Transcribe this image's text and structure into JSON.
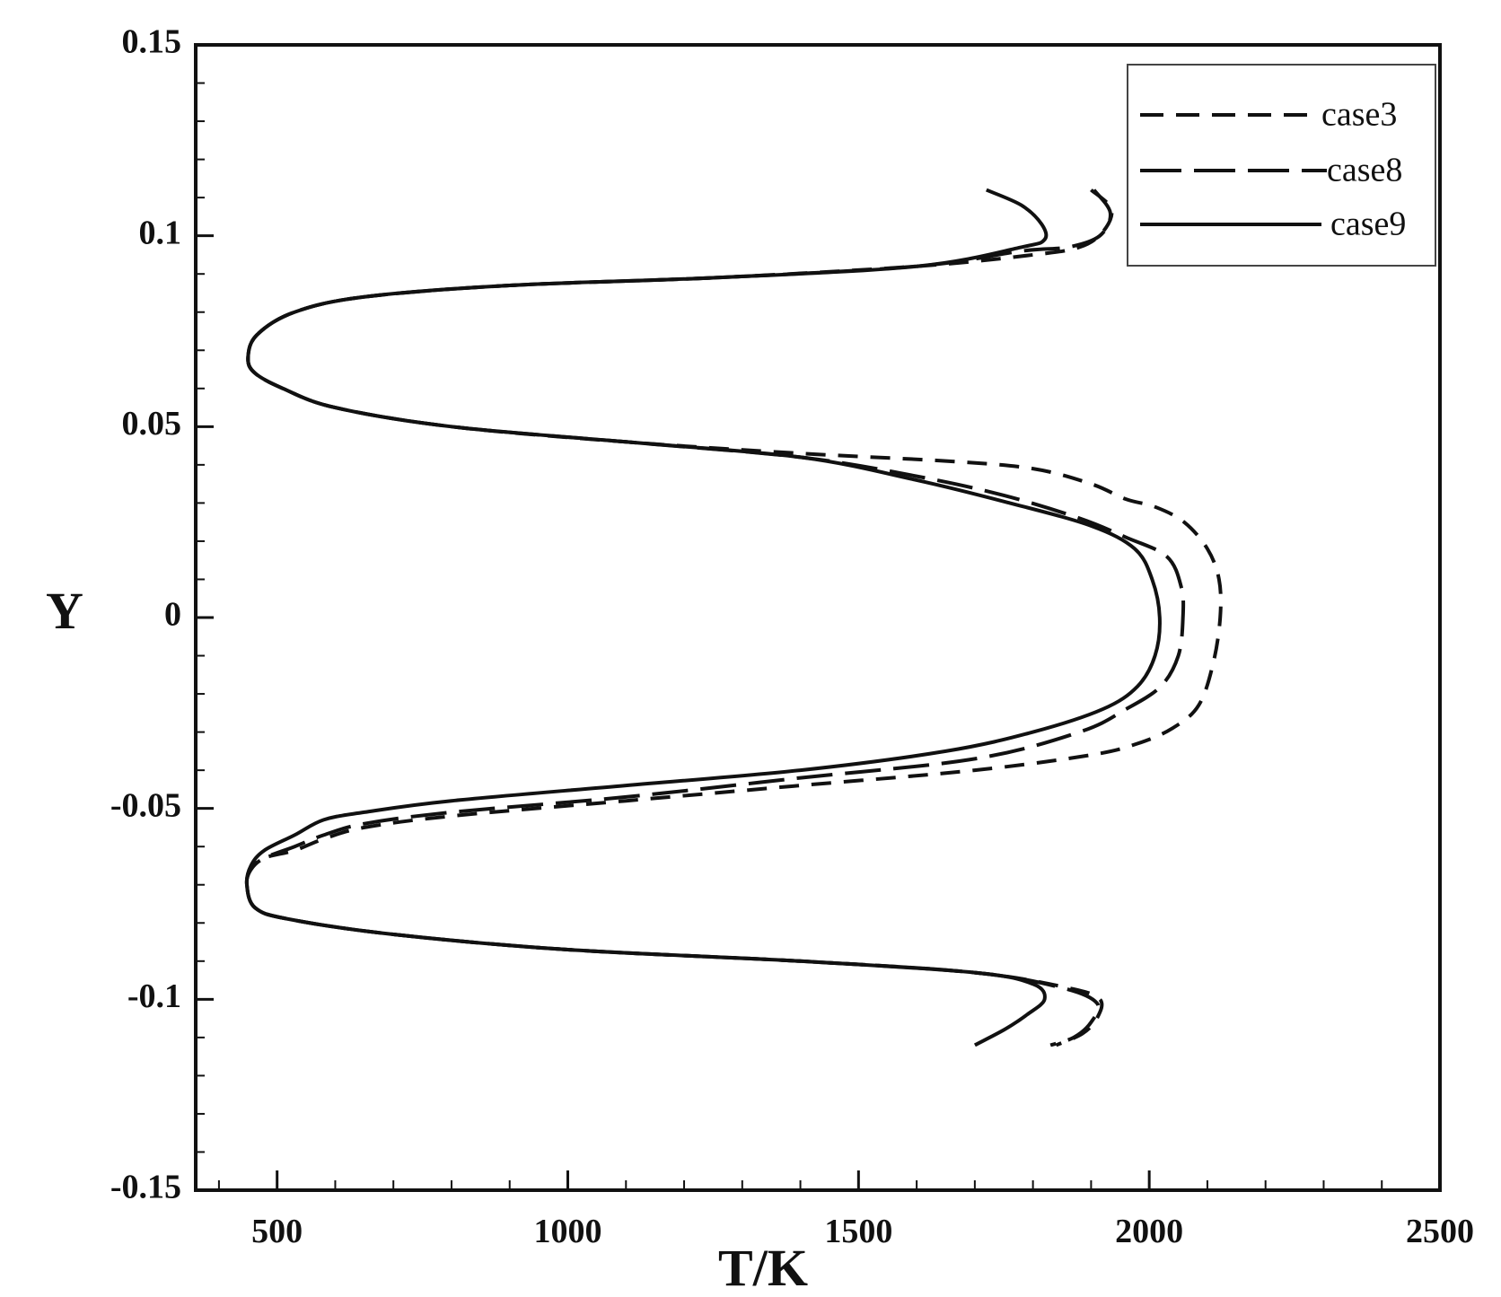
{
  "chart_data": {
    "type": "line",
    "title": "",
    "xlabel": "T/K",
    "ylabel": "Y",
    "xlim": [
      360,
      2500
    ],
    "ylim": [
      -0.15,
      0.15
    ],
    "x_ticks": [
      500,
      1000,
      1500,
      2000,
      2500
    ],
    "y_ticks": [
      -0.15,
      -0.1,
      -0.05,
      0,
      0.05,
      0.1,
      0.15
    ],
    "x_tick_labels": [
      "500",
      "1000",
      "1500",
      "2000",
      "2500"
    ],
    "y_tick_labels": [
      "-0.15",
      "-0.1",
      "-0.05",
      "0",
      "0.05",
      "0.1",
      "0.15"
    ],
    "grid": false,
    "legend_position": "top-right",
    "series": [
      {
        "name": "case3",
        "line_style": "dashed-short",
        "color": "#111111",
        "points": [
          [
            1900,
            0.112
          ],
          [
            1935,
            0.107
          ],
          [
            1920,
            0.101
          ],
          [
            1880,
            0.097
          ],
          [
            1800,
            0.095
          ],
          [
            1600,
            0.092
          ],
          [
            1250,
            0.089
          ],
          [
            900,
            0.087
          ],
          [
            650,
            0.084
          ],
          [
            530,
            0.08
          ],
          [
            465,
            0.074
          ],
          [
            450,
            0.068
          ],
          [
            462,
            0.064
          ],
          [
            510,
            0.06
          ],
          [
            600,
            0.055
          ],
          [
            800,
            0.05
          ],
          [
            1100,
            0.046
          ],
          [
            1400,
            0.043
          ],
          [
            1650,
            0.041
          ],
          [
            1800,
            0.039
          ],
          [
            1900,
            0.035
          ],
          [
            1960,
            0.031
          ],
          [
            2010,
            0.029
          ],
          [
            2060,
            0.025
          ],
          [
            2100,
            0.018
          ],
          [
            2120,
            0.01
          ],
          [
            2122,
            0.0
          ],
          [
            2110,
            -0.012
          ],
          [
            2085,
            -0.023
          ],
          [
            2040,
            -0.029
          ],
          [
            1980,
            -0.033
          ],
          [
            1900,
            -0.036
          ],
          [
            1700,
            -0.04
          ],
          [
            1400,
            -0.044
          ],
          [
            1100,
            -0.048
          ],
          [
            800,
            -0.052
          ],
          [
            650,
            -0.055
          ],
          [
            580,
            -0.058
          ],
          [
            530,
            -0.061
          ],
          [
            478,
            -0.063
          ],
          [
            455,
            -0.066
          ],
          [
            448,
            -0.07
          ],
          [
            462,
            -0.076
          ],
          [
            520,
            -0.079
          ],
          [
            700,
            -0.083
          ],
          [
            1000,
            -0.087
          ],
          [
            1400,
            -0.09
          ],
          [
            1700,
            -0.093
          ],
          [
            1860,
            -0.097
          ],
          [
            1915,
            -0.1
          ],
          [
            1910,
            -0.105
          ],
          [
            1885,
            -0.109
          ],
          [
            1840,
            -0.112
          ]
        ]
      },
      {
        "name": "case8",
        "line_style": "dashed-long",
        "color": "#111111",
        "points": [
          [
            1905,
            0.112
          ],
          [
            1933,
            0.106
          ],
          [
            1915,
            0.1
          ],
          [
            1860,
            0.097
          ],
          [
            1780,
            0.096
          ],
          [
            1600,
            0.092
          ],
          [
            1250,
            0.089
          ],
          [
            900,
            0.087
          ],
          [
            650,
            0.084
          ],
          [
            530,
            0.08
          ],
          [
            465,
            0.074
          ],
          [
            450,
            0.068
          ],
          [
            462,
            0.064
          ],
          [
            510,
            0.06
          ],
          [
            600,
            0.055
          ],
          [
            800,
            0.05
          ],
          [
            1100,
            0.046
          ],
          [
            1400,
            0.042
          ],
          [
            1600,
            0.037
          ],
          [
            1750,
            0.032
          ],
          [
            1880,
            0.026
          ],
          [
            1960,
            0.021
          ],
          [
            2030,
            0.016
          ],
          [
            2055,
            0.008
          ],
          [
            2058,
            0.0
          ],
          [
            2050,
            -0.01
          ],
          [
            2020,
            -0.018
          ],
          [
            1960,
            -0.024
          ],
          [
            1880,
            -0.03
          ],
          [
            1700,
            -0.037
          ],
          [
            1400,
            -0.042
          ],
          [
            1100,
            -0.047
          ],
          [
            800,
            -0.051
          ],
          [
            650,
            -0.054
          ],
          [
            580,
            -0.057
          ],
          [
            530,
            -0.06
          ],
          [
            478,
            -0.063
          ],
          [
            455,
            -0.066
          ],
          [
            448,
            -0.07
          ],
          [
            462,
            -0.076
          ],
          [
            520,
            -0.079
          ],
          [
            700,
            -0.083
          ],
          [
            1000,
            -0.087
          ],
          [
            1400,
            -0.09
          ],
          [
            1700,
            -0.093
          ],
          [
            1850,
            -0.097
          ],
          [
            1910,
            -0.101
          ],
          [
            1900,
            -0.106
          ],
          [
            1870,
            -0.11
          ],
          [
            1830,
            -0.112
          ]
        ]
      },
      {
        "name": "case9",
        "line_style": "solid",
        "color": "#111111",
        "points": [
          [
            1720,
            0.112
          ],
          [
            1780,
            0.108
          ],
          [
            1815,
            0.103
          ],
          [
            1820,
            0.099
          ],
          [
            1780,
            0.097
          ],
          [
            1600,
            0.092
          ],
          [
            1250,
            0.089
          ],
          [
            900,
            0.087
          ],
          [
            650,
            0.084
          ],
          [
            530,
            0.08
          ],
          [
            465,
            0.074
          ],
          [
            450,
            0.068
          ],
          [
            462,
            0.064
          ],
          [
            510,
            0.06
          ],
          [
            600,
            0.055
          ],
          [
            800,
            0.05
          ],
          [
            1100,
            0.046
          ],
          [
            1400,
            0.042
          ],
          [
            1600,
            0.036
          ],
          [
            1760,
            0.03
          ],
          [
            1900,
            0.024
          ],
          [
            1975,
            0.018
          ],
          [
            2005,
            0.01
          ],
          [
            2018,
            0.0
          ],
          [
            2010,
            -0.01
          ],
          [
            1980,
            -0.018
          ],
          [
            1920,
            -0.024
          ],
          [
            1800,
            -0.03
          ],
          [
            1650,
            -0.035
          ],
          [
            1400,
            -0.04
          ],
          [
            1100,
            -0.044
          ],
          [
            800,
            -0.048
          ],
          [
            650,
            -0.051
          ],
          [
            580,
            -0.053
          ],
          [
            530,
            -0.057
          ],
          [
            478,
            -0.061
          ],
          [
            455,
            -0.065
          ],
          [
            448,
            -0.07
          ],
          [
            462,
            -0.076
          ],
          [
            520,
            -0.079
          ],
          [
            700,
            -0.083
          ],
          [
            1000,
            -0.087
          ],
          [
            1400,
            -0.09
          ],
          [
            1700,
            -0.093
          ],
          [
            1800,
            -0.096
          ],
          [
            1820,
            -0.1
          ],
          [
            1790,
            -0.104
          ],
          [
            1750,
            -0.108
          ],
          [
            1700,
            -0.112
          ]
        ]
      }
    ]
  }
}
